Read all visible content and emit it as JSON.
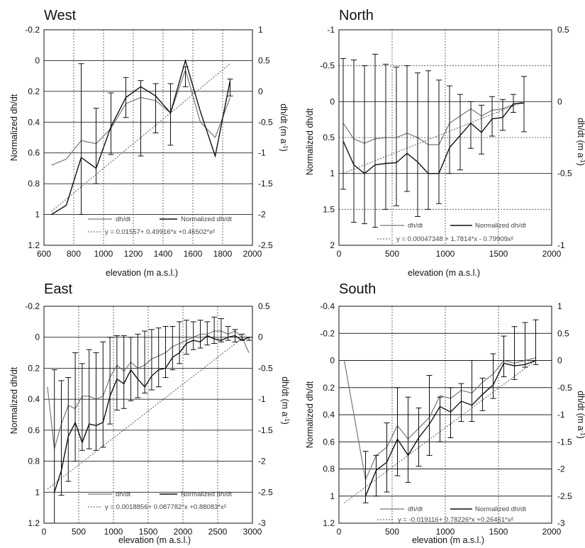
{
  "chart_data": [
    {
      "type": "line",
      "title": "West",
      "xlabel": "elevation (m a.s.l.)",
      "ylabel": "Normalized dh/dt",
      "y2label_main": "dh/dt (m a",
      "y2label_sup": "-1",
      "y2label_end": ")",
      "xlim": [
        600,
        2000
      ],
      "ylim": [
        1.2,
        -0.2
      ],
      "y2lim": [
        -2.5,
        1
      ],
      "xticks": [
        "600",
        "800",
        "1000",
        "1200",
        "1400",
        "1600",
        "1800",
        "2000"
      ],
      "yticks": [
        "-0.2",
        "0",
        "0.2",
        "0.4",
        "0.6",
        "0.8",
        "1",
        "1.2"
      ],
      "y2ticks": [
        "1",
        "0.5",
        "0",
        "-0.5",
        "-1",
        "-1.5",
        "-2",
        "-2.5"
      ],
      "grid": true,
      "legend": {
        "dhdt": "dh/dt",
        "norm": "Normalized dh/dt",
        "fit": "y = 0.01557+ 0.49916*x +0.46502*x²"
      },
      "series": [
        {
          "name": "dh/dt",
          "x": [
            650,
            750,
            850,
            950,
            1050,
            1150,
            1250,
            1350,
            1450,
            1550,
            1650,
            1750,
            1850
          ],
          "y": [
            -1.2,
            -1.1,
            -0.8,
            -0.85,
            -0.6,
            -0.2,
            -0.1,
            -0.15,
            -0.35,
            0.35,
            -0.5,
            -0.75,
            -0.1
          ]
        },
        {
          "name": "Normalized dh/dt",
          "x": [
            650,
            750,
            850,
            950,
            1050,
            1150,
            1250,
            1350,
            1450,
            1550,
            1650,
            1750,
            1850
          ],
          "y": [
            1.0,
            0.94,
            0.63,
            0.7,
            0.43,
            0.24,
            0.17,
            0.23,
            0.34,
            0.0,
            0.33,
            0.62,
            0.13
          ],
          "err_low": [
            null,
            null,
            1.0,
            0.8,
            0.61,
            0.37,
            0.62,
            0.47,
            0.55,
            0.17,
            null,
            null,
            0.23
          ],
          "err_high": [
            null,
            null,
            0.02,
            0.31,
            0.21,
            0.11,
            0.13,
            0.15,
            0.15,
            0.04,
            null,
            null,
            0.12
          ]
        }
      ],
      "fit": {
        "x": [
          650,
          1850
        ],
        "y": [
          0.98,
          0.02
        ]
      }
    },
    {
      "type": "line",
      "title": "North",
      "xlabel": "elevation (m a.s.l.)",
      "ylabel": "Normalized dh/dt",
      "y2label_main": "dh/dt (m a",
      "y2label_sup": "-1",
      "y2label_end": ")",
      "xlim": [
        0,
        2000
      ],
      "ylim": [
        2,
        -1
      ],
      "y2lim": [
        -1,
        0.5
      ],
      "xticks": [
        "0",
        "500",
        "1000",
        "1500",
        "2000"
      ],
      "yticks": [
        "-1",
        "-0.5",
        "0",
        "0.5",
        "1",
        "1.5",
        "2"
      ],
      "y2ticks": [
        "0.5",
        "",
        "0",
        "",
        "-0.5",
        "",
        "-1"
      ],
      "grid": true,
      "legend": {
        "dhdt": "dh/dt",
        "norm": "Normalized dh/dt",
        "fit": "y = 0.00047348 + 1.7814*x - 0.79909x²"
      },
      "series": [
        {
          "name": "dh/dt",
          "x": [
            40,
            140,
            240,
            340,
            440,
            540,
            640,
            740,
            840,
            940,
            1040,
            1140,
            1240,
            1340,
            1440,
            1540,
            1640,
            1740
          ],
          "y": [
            -0.15,
            -0.26,
            -0.29,
            -0.26,
            -0.25,
            -0.25,
            -0.22,
            -0.25,
            -0.3,
            -0.3,
            -0.15,
            -0.1,
            -0.05,
            -0.1,
            -0.06,
            -0.05,
            -0.02,
            0.0
          ],
          "err_low": [],
          "err_high": []
        },
        {
          "name": "Normalized dh/dt",
          "x": [
            40,
            140,
            240,
            340,
            440,
            540,
            640,
            740,
            840,
            940,
            1040,
            1140,
            1240,
            1340,
            1440,
            1540,
            1640,
            1740
          ],
          "y": [
            0.55,
            0.88,
            1.0,
            0.88,
            0.86,
            0.85,
            0.72,
            0.84,
            1.0,
            1.0,
            0.64,
            0.47,
            0.3,
            0.43,
            0.24,
            0.22,
            0.03,
            0.02
          ],
          "err_low": [
            1.22,
            1.68,
            1.7,
            1.75,
            1.5,
            1.45,
            1.25,
            1.6,
            1.5,
            1.42,
            1.0,
            0.95,
            0.65,
            0.73,
            0.48,
            0.4,
            0.15,
            0.42
          ],
          "err_high": [
            -0.6,
            -0.58,
            -0.5,
            -0.66,
            -0.52,
            -0.48,
            -0.5,
            -0.4,
            -0.43,
            -0.3,
            -0.22,
            -0.1,
            0.0,
            0.05,
            -0.07,
            -0.03,
            -0.1,
            -0.35
          ]
        }
      ],
      "fit": {
        "x": [
          40,
          1740
        ],
        "y": [
          1.0,
          0.0
        ]
      }
    },
    {
      "type": "line",
      "title": "East",
      "xlabel": "elevation (m a.s.l.)",
      "ylabel": "Normalized dh/dt",
      "y2label_main": "dh/dt (m a",
      "y2label_sup": "-1",
      "y2label_end": ")",
      "xlim": [
        0,
        3000
      ],
      "ylim": [
        1.2,
        -0.2
      ],
      "y2lim": [
        -3,
        0.5
      ],
      "xticks": [
        "0",
        "500",
        "1000",
        "1500",
        "2000",
        "2500",
        "3000"
      ],
      "yticks": [
        "-0.2",
        "0",
        "0.2",
        "0.4",
        "0.6",
        "0.8",
        "1",
        "1.2"
      ],
      "y2ticks": [
        "0.5",
        "0",
        "-0.5",
        "-1",
        "-1.5",
        "-2",
        "-2.5",
        "-3"
      ],
      "grid": true,
      "legend": {
        "dhdt": "dh/dt",
        "norm": "Normalized dh/dt",
        "fit": "y = 0.0018856+ 0.087782*x +0.88083*x²"
      },
      "series": [
        {
          "name": "dh/dt",
          "x": [
            50,
            150,
            250,
            350,
            450,
            550,
            650,
            750,
            850,
            950,
            1050,
            1150,
            1250,
            1350,
            1450,
            1550,
            1650,
            1750,
            1850,
            1950,
            2050,
            2150,
            2250,
            2350,
            2450,
            2550,
            2650,
            2750,
            2850,
            2950
          ],
          "y": [
            -0.8,
            -1.8,
            -1.4,
            -1.1,
            -1.15,
            -0.95,
            -0.95,
            -1.0,
            -0.95,
            -0.65,
            -0.45,
            -0.55,
            -0.4,
            -0.5,
            -0.45,
            -0.35,
            -0.3,
            -0.25,
            -0.15,
            -0.1,
            -0.05,
            0.0,
            0.05,
            0.05,
            0.1,
            0.1,
            0.05,
            0.1,
            0.0,
            -0.25
          ]
        },
        {
          "name": "Normalized dh/dt",
          "x": [
            50,
            150,
            250,
            350,
            450,
            550,
            650,
            750,
            850,
            950,
            1050,
            1150,
            1250,
            1350,
            1450,
            1550,
            1650,
            1750,
            1850,
            1950,
            2050,
            2150,
            2250,
            2350,
            2450,
            2550,
            2650,
            2750,
            2850,
            2950
          ],
          "y": [
            null,
            1.0,
            0.86,
            0.64,
            0.55,
            0.68,
            0.56,
            0.57,
            0.55,
            0.38,
            0.27,
            0.3,
            0.21,
            0.27,
            0.32,
            0.25,
            0.21,
            0.2,
            0.13,
            0.1,
            0.04,
            0.02,
            0.03,
            -0.01,
            0.01,
            0.02,
            0.0,
            -0.01,
            0.02,
            0.0
          ],
          "err_low": [
            null,
            1.2,
            1.02,
            0.93,
            0.8,
            0.73,
            0.72,
            0.73,
            0.71,
            0.56,
            0.47,
            0.46,
            0.41,
            0.39,
            0.36,
            0.34,
            0.32,
            0.26,
            0.21,
            0.17,
            0.11,
            0.08,
            0.07,
            0.05,
            0.04,
            0.03,
            0.02,
            0.03,
            0.02,
            0.02
          ],
          "err_high": [
            null,
            0.21,
            0.28,
            0.26,
            0.1,
            0.17,
            0.08,
            0.1,
            0.03,
            0.0,
            -0.01,
            -0.01,
            0.0,
            -0.02,
            -0.04,
            -0.05,
            -0.06,
            -0.07,
            -0.07,
            -0.1,
            -0.11,
            -0.1,
            -0.11,
            -0.1,
            -0.13,
            -0.12,
            -0.07,
            -0.05,
            -0.02,
            0.0
          ]
        }
      ],
      "fit": {
        "x": [
          50,
          2900
        ],
        "y": [
          0.98,
          -0.01
        ]
      }
    },
    {
      "type": "line",
      "title": "South",
      "xlabel": "elevation (m a.s.l.)",
      "ylabel": "Normalized dh/dt",
      "y2label_main": "dh/dt (m a",
      "y2label_sup": "-1",
      "y2label_end": ")",
      "xlim": [
        0,
        2000
      ],
      "ylim": [
        1.2,
        -0.4
      ],
      "y2lim": [
        -3,
        1
      ],
      "xticks": [
        "0",
        "500",
        "1000",
        "1500",
        "2000"
      ],
      "yticks": [
        "-0.4",
        "-0.2",
        "0",
        "0.2",
        "0.4",
        "0.6",
        "0.8",
        "1",
        "1.2"
      ],
      "y2ticks": [
        "1",
        "0.5",
        "0",
        "-0.5",
        "-1",
        "-1.5",
        "-2",
        "-2.5",
        "-3"
      ],
      "grid": true,
      "legend": {
        "dhdt": "dh/dt",
        "norm": "Normalized dh/dt",
        "fit": "y = -0.019116+ 0.78226*x +0.26461*x²"
      },
      "series": [
        {
          "name": "dh/dt",
          "x": [
            50,
            250,
            350,
            450,
            550,
            650,
            750,
            850,
            950,
            1050,
            1150,
            1250,
            1350,
            1450,
            1550,
            1650,
            1750,
            1850
          ],
          "y": [
            0.0,
            -2.2,
            -1.75,
            -1.6,
            -1.2,
            -1.45,
            -1.25,
            -1.05,
            -0.65,
            -0.7,
            -0.55,
            -0.6,
            -0.4,
            -0.25,
            0.0,
            -0.05,
            0.0,
            0.05
          ],
          "err_low": [],
          "err_high": []
        },
        {
          "name": "Normalized dh/dt",
          "x": [
            250,
            350,
            450,
            550,
            650,
            750,
            850,
            950,
            1050,
            1150,
            1250,
            1350,
            1450,
            1550,
            1650,
            1750,
            1850
          ],
          "y": [
            1.0,
            0.81,
            0.75,
            0.58,
            0.7,
            0.57,
            0.47,
            0.34,
            0.38,
            0.3,
            0.33,
            0.25,
            0.18,
            0.02,
            0.04,
            0.03,
            0.0
          ],
          "err_low": [
            1.05,
            1.0,
            0.97,
            0.85,
            0.9,
            0.78,
            0.7,
            0.6,
            0.57,
            0.45,
            0.45,
            0.37,
            0.28,
            0.12,
            0.14,
            0.05,
            0.03
          ],
          "err_high": [
            0.67,
            0.7,
            0.46,
            0.2,
            0.27,
            0.35,
            0.11,
            0.27,
            0.2,
            0.17,
            0.0,
            0.13,
            -0.05,
            -0.18,
            -0.25,
            -0.28,
            -0.3
          ]
        }
      ],
      "fit": {
        "x": [
          50,
          1850
        ],
        "y": [
          1.05,
          0.0
        ]
      }
    }
  ]
}
